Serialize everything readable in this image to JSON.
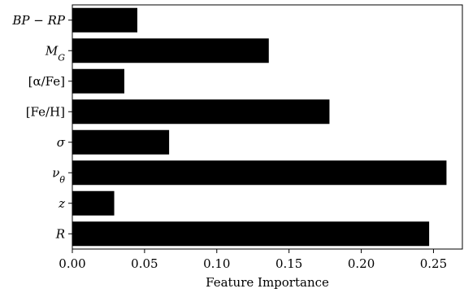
{
  "chart_data": {
    "type": "bar",
    "orientation": "horizontal",
    "title": "",
    "xlabel": "Feature Importance",
    "ylabel": "",
    "categories": [
      "BP-RP",
      "M_G",
      "[α/Fe]",
      "[Fe/H]",
      "σ",
      "ν_θ",
      "z",
      "R"
    ],
    "values": [
      0.045,
      0.136,
      0.036,
      0.178,
      0.067,
      0.259,
      0.029,
      0.247
    ],
    "xlim": [
      0.0,
      0.27
    ],
    "xticks": [
      0.0,
      0.05,
      0.1,
      0.15,
      0.2,
      0.25
    ],
    "xtick_labels": [
      "0.00",
      "0.05",
      "0.10",
      "0.15",
      "0.20",
      "0.25"
    ],
    "bar_color": "#000000",
    "grid": false,
    "legend": "none"
  }
}
